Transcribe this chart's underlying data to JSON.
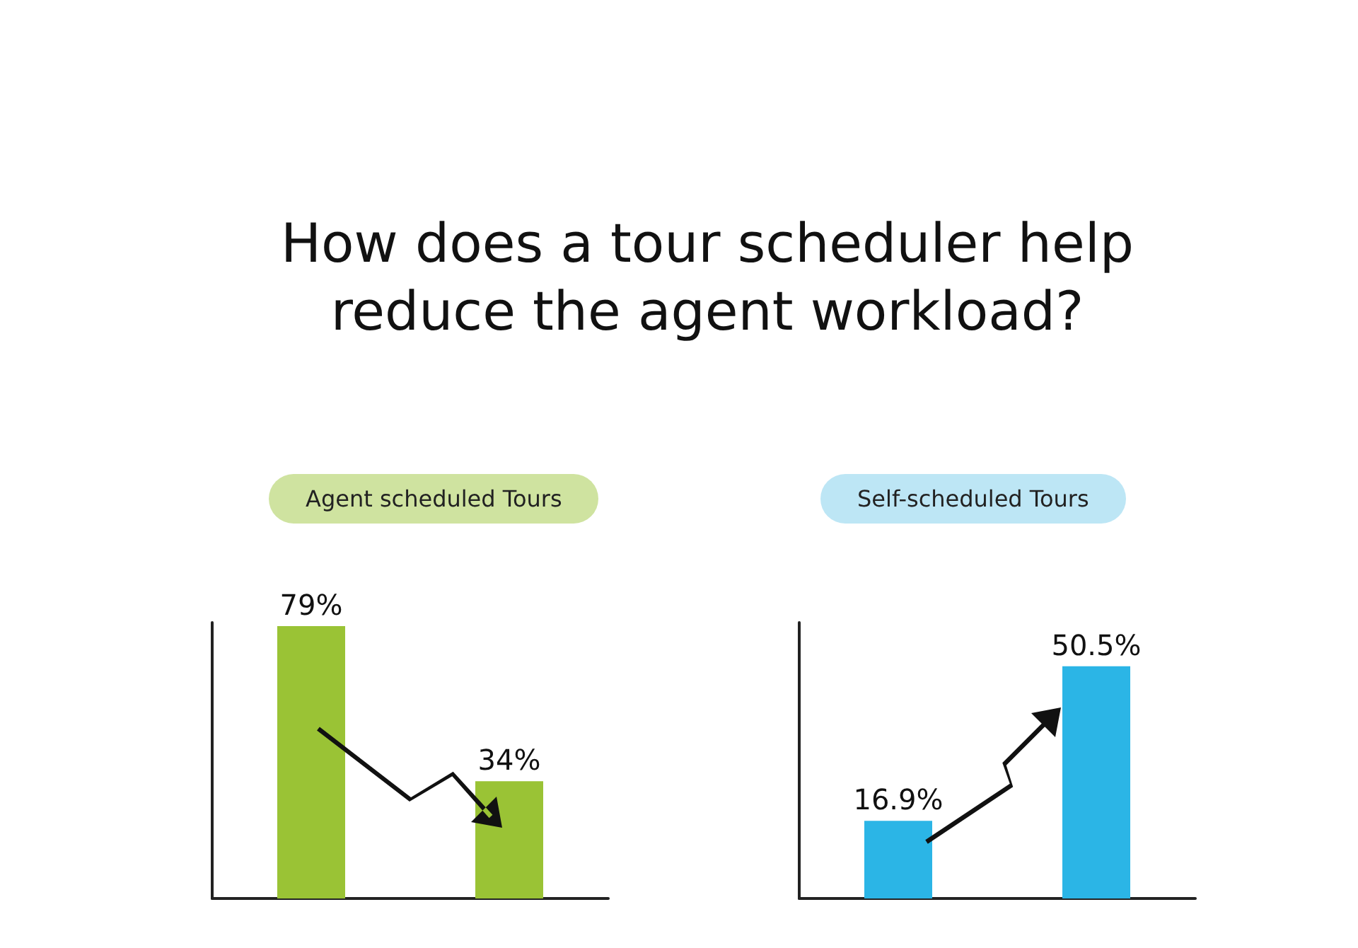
{
  "chart_data": [
    {
      "type": "bar",
      "title": "How does a tour scheduler help reduce the agent workload?",
      "subtitle": "Agent scheduled Tours",
      "categories": [
        null,
        null
      ],
      "values": [
        79,
        34
      ],
      "value_labels": [
        "79%",
        "34%"
      ],
      "color": "#9ac335",
      "grid": false,
      "tick_labels": false
    },
    {
      "type": "bar",
      "subtitle": "Self-scheduled Tours",
      "categories": [
        null,
        null
      ],
      "values": [
        16.9,
        50.5
      ],
      "value_labels": [
        "16.9%",
        "50.5%"
      ],
      "color": "#2bb5e6",
      "grid": false,
      "tick_labels": false
    }
  ]
}
